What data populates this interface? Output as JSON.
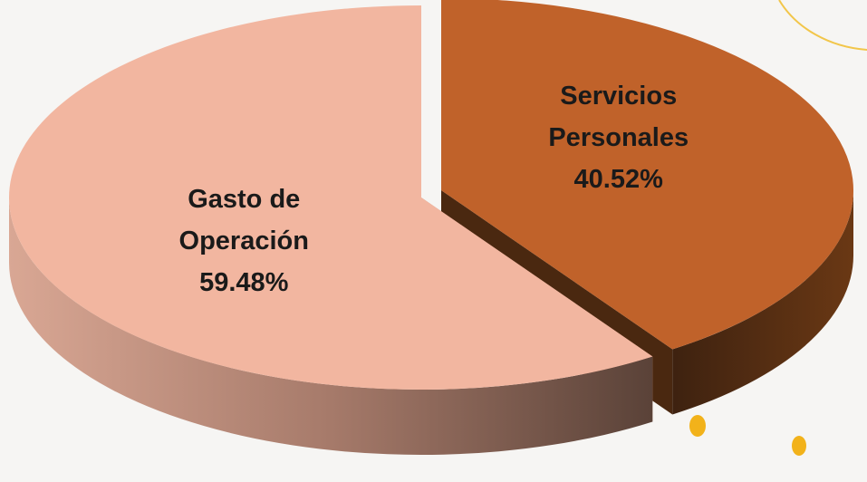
{
  "chart_data": {
    "type": "pie",
    "categories": [
      "Gasto de Operación",
      "Servicios Personales"
    ],
    "values": [
      59.48,
      40.52
    ],
    "value_labels": [
      "59.48%",
      "40.52%"
    ],
    "colors": [
      "#f2b6a0",
      "#c0622a"
    ]
  }
}
